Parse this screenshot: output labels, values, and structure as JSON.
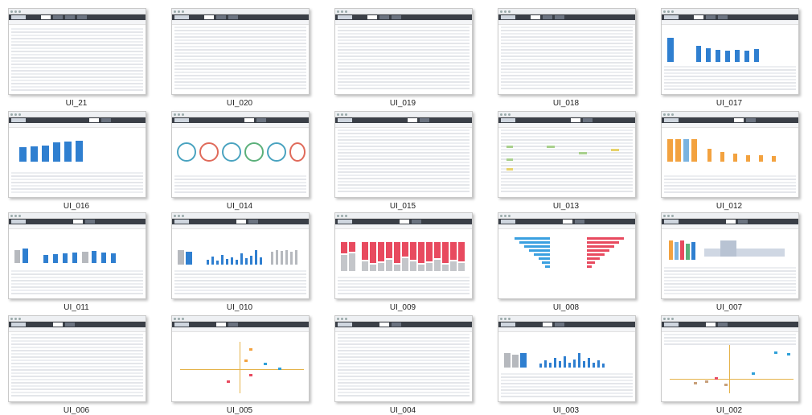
{
  "captions": {
    "ui21": "UI_21",
    "ui020": "UI_020",
    "ui019": "UI_019",
    "ui018": "UI_018",
    "ui017": "UI_017",
    "ui016": "UI_016",
    "ui014": "UI_014",
    "ui015": "UI_015",
    "ui013": "UI_013",
    "ui012": "UI_012",
    "ui011": "UI_011",
    "ui010": "UI_010",
    "ui009": "UI_009",
    "ui008": "UI_008",
    "ui007": "UI_007",
    "ui006": "UI_006",
    "ui005": "UI_005",
    "ui004": "UI_004",
    "ui003": "UI_003",
    "ui002": "UI_002"
  },
  "colors": {
    "accent_blue": "#2f7fd0",
    "accent_red": "#e84a5f",
    "accent_orange": "#f3a23f",
    "nav_dark": "#3a3f47"
  }
}
